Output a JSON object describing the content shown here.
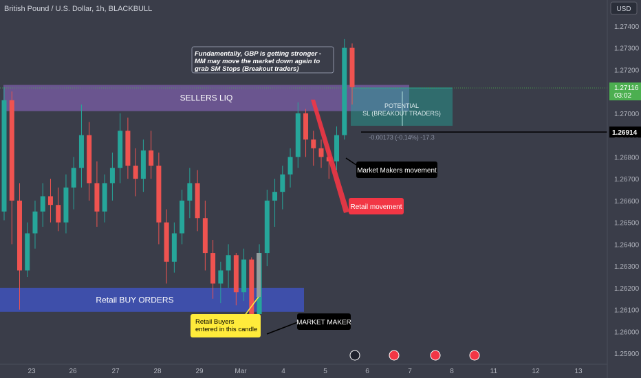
{
  "header": {
    "symbol_title": "British Pound / U.S. Dollar, 1h, BLACKBULL"
  },
  "currency_badge": "USD",
  "price_tag": {
    "price": "1.27116",
    "countdown": "03:02"
  },
  "line_label": "1.26914",
  "colors": {
    "background": "#3a3d49",
    "up_candle": "#26a69a",
    "down_candle": "#ef5350",
    "sellers_zone": "#7b5ea7",
    "buyers_zone": "#3f51b5",
    "price_tag": "#4caf50",
    "position_box": "#26a69a",
    "retail_arrow": "#f23645",
    "retail_buyers_note": "#ffeb3b"
  },
  "chart_data": {
    "type": "candlestick",
    "title": "British Pound / U.S. Dollar, 1h, BLACKBULL",
    "y_axis": {
      "ticks": [
        "1.27400",
        "1.27300",
        "1.27200",
        "1.27000",
        "1.26900",
        "1.26800",
        "1.26700",
        "1.26600",
        "1.26500",
        "1.26400",
        "1.26300",
        "1.26200",
        "1.26100",
        "1.26000",
        "1.25900"
      ],
      "ylim": [
        1.2585,
        1.2745
      ]
    },
    "x_axis": {
      "ticks": [
        "23",
        "26",
        "27",
        "28",
        "29",
        "Mar",
        "4",
        "5",
        "6",
        "7",
        "8",
        "11",
        "12",
        "13"
      ]
    },
    "current_price": 1.27116,
    "horizontal_line": 1.26914,
    "series": [
      {
        "open": 1.2655,
        "high": 1.2712,
        "low": 1.2651,
        "close": 1.2706
      },
      {
        "open": 1.2706,
        "high": 1.271,
        "low": 1.264,
        "close": 1.266
      },
      {
        "open": 1.266,
        "high": 1.2668,
        "low": 1.261,
        "close": 1.2628
      },
      {
        "open": 1.2628,
        "high": 1.265,
        "low": 1.2625,
        "close": 1.2645
      },
      {
        "open": 1.2645,
        "high": 1.266,
        "low": 1.2638,
        "close": 1.2655
      },
      {
        "open": 1.2655,
        "high": 1.2668,
        "low": 1.2648,
        "close": 1.2662
      },
      {
        "open": 1.2662,
        "high": 1.267,
        "low": 1.265,
        "close": 1.2658
      },
      {
        "open": 1.2658,
        "high": 1.2666,
        "low": 1.2646,
        "close": 1.265
      },
      {
        "open": 1.265,
        "high": 1.2672,
        "low": 1.2645,
        "close": 1.2666
      },
      {
        "open": 1.2666,
        "high": 1.268,
        "low": 1.2656,
        "close": 1.2675
      },
      {
        "open": 1.2675,
        "high": 1.2704,
        "low": 1.2666,
        "close": 1.269
      },
      {
        "open": 1.269,
        "high": 1.2696,
        "low": 1.266,
        "close": 1.2668
      },
      {
        "open": 1.2668,
        "high": 1.2678,
        "low": 1.2648,
        "close": 1.2655
      },
      {
        "open": 1.2655,
        "high": 1.2672,
        "low": 1.265,
        "close": 1.2668
      },
      {
        "open": 1.2668,
        "high": 1.2682,
        "low": 1.266,
        "close": 1.2675
      },
      {
        "open": 1.2675,
        "high": 1.27,
        "low": 1.2668,
        "close": 1.2692
      },
      {
        "open": 1.2692,
        "high": 1.2698,
        "low": 1.267,
        "close": 1.2676
      },
      {
        "open": 1.2676,
        "high": 1.2684,
        "low": 1.2662,
        "close": 1.267
      },
      {
        "open": 1.267,
        "high": 1.2688,
        "low": 1.2664,
        "close": 1.2683
      },
      {
        "open": 1.2683,
        "high": 1.2692,
        "low": 1.267,
        "close": 1.2676
      },
      {
        "open": 1.2676,
        "high": 1.2682,
        "low": 1.264,
        "close": 1.265
      },
      {
        "open": 1.265,
        "high": 1.2656,
        "low": 1.2622,
        "close": 1.2632
      },
      {
        "open": 1.2632,
        "high": 1.265,
        "low": 1.2627,
        "close": 1.2645
      },
      {
        "open": 1.2645,
        "high": 1.2665,
        "low": 1.264,
        "close": 1.266
      },
      {
        "open": 1.266,
        "high": 1.2675,
        "low": 1.2652,
        "close": 1.2668
      },
      {
        "open": 1.2668,
        "high": 1.2674,
        "low": 1.2646,
        "close": 1.2652
      },
      {
        "open": 1.2652,
        "high": 1.266,
        "low": 1.2628,
        "close": 1.2636
      },
      {
        "open": 1.2636,
        "high": 1.2642,
        "low": 1.2615,
        "close": 1.2622
      },
      {
        "open": 1.2622,
        "high": 1.2632,
        "low": 1.2613,
        "close": 1.2628
      },
      {
        "open": 1.2628,
        "high": 1.264,
        "low": 1.262,
        "close": 1.2635
      },
      {
        "open": 1.2635,
        "high": 1.2636,
        "low": 1.2612,
        "close": 1.2618
      },
      {
        "open": 1.2618,
        "high": 1.2638,
        "low": 1.2614,
        "close": 1.2633
      },
      {
        "open": 1.2633,
        "high": 1.2634,
        "low": 1.2603,
        "close": 1.2608
      },
      {
        "open": 1.2608,
        "high": 1.264,
        "low": 1.2605,
        "close": 1.2636
      },
      {
        "open": 1.2636,
        "high": 1.2665,
        "low": 1.263,
        "close": 1.266
      },
      {
        "open": 1.266,
        "high": 1.267,
        "low": 1.2648,
        "close": 1.2664
      },
      {
        "open": 1.2664,
        "high": 1.2676,
        "low": 1.2656,
        "close": 1.2672
      },
      {
        "open": 1.2672,
        "high": 1.2684,
        "low": 1.2666,
        "close": 1.268
      },
      {
        "open": 1.268,
        "high": 1.2705,
        "low": 1.2675,
        "close": 1.27
      },
      {
        "open": 1.27,
        "high": 1.2702,
        "low": 1.268,
        "close": 1.2688
      },
      {
        "open": 1.2688,
        "high": 1.2692,
        "low": 1.2676,
        "close": 1.2684
      },
      {
        "open": 1.2684,
        "high": 1.2688,
        "low": 1.2675,
        "close": 1.268
      },
      {
        "open": 1.268,
        "high": 1.2685,
        "low": 1.267,
        "close": 1.2678
      },
      {
        "open": 1.2678,
        "high": 1.2694,
        "low": 1.2674,
        "close": 1.269
      },
      {
        "open": 1.269,
        "high": 1.2734,
        "low": 1.2688,
        "close": 1.273
      },
      {
        "open": 1.273,
        "high": 1.2732,
        "low": 1.2704,
        "close": 1.2712
      }
    ],
    "zones": [
      {
        "label": "SELLERS LIQ",
        "top": 1.2713,
        "bottom": 1.2701
      },
      {
        "label": "Retail BUY ORDERS",
        "top": 1.262,
        "bottom": 1.2609
      }
    ],
    "position_tool": {
      "label_line1": "POTENTIAL",
      "label_line2": "SL (BREAKOUT TRADERS)",
      "stats": "-0.00173 (-0.14%) -17.3"
    },
    "annotations": [
      {
        "id": "fundamental_note",
        "text": "Fundamentally, GBP is getting stronger - MM may move the market down again to grab SM Stops (Breakout traders)"
      },
      {
        "id": "mm_movement",
        "text": "Market Makers movement"
      },
      {
        "id": "retail_movement",
        "text": "Retail movement"
      },
      {
        "id": "retail_buyers",
        "text": "Retail Buyers entered in this candle"
      },
      {
        "id": "market_maker",
        "text": "MARKET MAKER"
      }
    ]
  }
}
